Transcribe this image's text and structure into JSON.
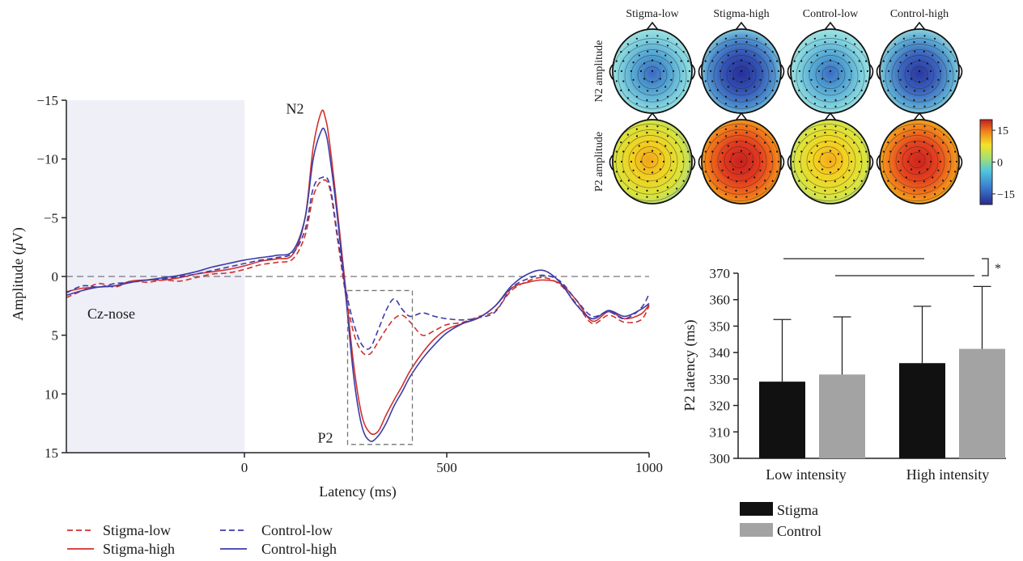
{
  "chart_data": [
    {
      "type": "line",
      "xlabel": "Latency (ms)",
      "ylabel": "Amplitude (μV)",
      "ylabel_prefix": "Amplitude (",
      "ylabel_mu": "μ",
      "ylabel_suffix": "V)",
      "xlim": [
        -440,
        1000
      ],
      "ylim": [
        15,
        -15
      ],
      "y_inverted": true,
      "x_ticks": [
        "0",
        "500",
        "1000"
      ],
      "x_tick_values": [
        0,
        500,
        1000
      ],
      "y_ticks": [
        "−15",
        "−10",
        "−5",
        "0",
        "5",
        "10",
        "15"
      ],
      "y_tick_values": [
        -15,
        -10,
        -5,
        0,
        5,
        10,
        15
      ],
      "baseline_region": [
        -440,
        0
      ],
      "baseline_color": "#efeff8",
      "channel_label": "Cz-nose",
      "peak_labels": [
        {
          "text": "N2",
          "x": 125,
          "y": -14
        },
        {
          "text": "P2",
          "x": 200,
          "y": 14
        }
      ],
      "p2_window": {
        "x": [
          255,
          415
        ],
        "y": [
          1.2,
          14.3
        ]
      },
      "series": [
        {
          "name": "Stigma-low",
          "color": "#d0312d",
          "dash": true,
          "x": [
            -440,
            -400,
            -360,
            -320,
            -280,
            -240,
            -200,
            -160,
            -120,
            -80,
            -40,
            0,
            40,
            80,
            120,
            150,
            170,
            190,
            210,
            230,
            250,
            270,
            290,
            310,
            330,
            350,
            370,
            390,
            410,
            440,
            470,
            500,
            540,
            580,
            620,
            660,
            700,
            740,
            780,
            820,
            860,
            900,
            940,
            980,
            1000
          ],
          "y": [
            1.8,
            1.2,
            0.6,
            0.9,
            0.4,
            0.5,
            0.3,
            0.4,
            0.1,
            -0.2,
            -0.3,
            -0.6,
            -1.0,
            -1.2,
            -1.5,
            -3.5,
            -6.8,
            -8.1,
            -7.6,
            -3.2,
            1.5,
            4.8,
            6.4,
            6.6,
            5.6,
            4.5,
            3.6,
            3.3,
            3.9,
            5.0,
            4.6,
            4.1,
            3.9,
            3.4,
            2.9,
            1.2,
            0.4,
            0.1,
            0.7,
            2.3,
            4.0,
            3.3,
            3.9,
            3.7,
            2.5
          ]
        },
        {
          "name": "Stigma-high",
          "color": "#d0312d",
          "dash": false,
          "x": [
            -440,
            -400,
            -360,
            -320,
            -280,
            -240,
            -200,
            -160,
            -120,
            -80,
            -40,
            0,
            40,
            80,
            120,
            150,
            170,
            190,
            200,
            210,
            230,
            250,
            270,
            290,
            310,
            330,
            350,
            370,
            390,
            410,
            440,
            470,
            500,
            540,
            580,
            620,
            660,
            700,
            740,
            780,
            820,
            860,
            900,
            940,
            980,
            1000
          ],
          "y": [
            1.3,
            1.0,
            0.9,
            0.8,
            0.4,
            0.3,
            0.3,
            0.1,
            -0.2,
            -0.4,
            -0.6,
            -0.9,
            -1.3,
            -1.5,
            -1.9,
            -5.0,
            -11.0,
            -14.0,
            -13.5,
            -11.5,
            -5.5,
            1.0,
            7.5,
            11.8,
            13.3,
            13.2,
            11.8,
            10.5,
            9.3,
            8.0,
            6.5,
            5.3,
            4.5,
            4.0,
            3.5,
            2.5,
            1.0,
            0.5,
            0.3,
            0.6,
            2.0,
            3.8,
            3.0,
            3.6,
            3.2,
            2.4
          ]
        },
        {
          "name": "Control-low",
          "color": "#3c3ca8",
          "dash": true,
          "x": [
            -440,
            -400,
            -360,
            -320,
            -280,
            -240,
            -200,
            -160,
            -120,
            -80,
            -40,
            0,
            40,
            80,
            120,
            150,
            170,
            190,
            210,
            230,
            250,
            270,
            290,
            310,
            330,
            350,
            370,
            390,
            410,
            440,
            470,
            500,
            540,
            580,
            620,
            660,
            700,
            740,
            780,
            820,
            860,
            900,
            940,
            980,
            1000
          ],
          "y": [
            1.4,
            0.8,
            0.9,
            0.6,
            0.5,
            0.3,
            0.2,
            0.0,
            -0.2,
            -0.5,
            -0.8,
            -1.1,
            -1.4,
            -1.6,
            -2.0,
            -4.0,
            -7.5,
            -8.4,
            -7.9,
            -3.5,
            1.0,
            4.0,
            5.8,
            6.1,
            4.6,
            2.9,
            1.9,
            2.8,
            3.4,
            3.1,
            3.4,
            3.6,
            3.7,
            3.5,
            3.0,
            1.0,
            0.2,
            -0.1,
            0.4,
            2.0,
            3.4,
            3.0,
            3.6,
            2.7,
            1.5
          ]
        },
        {
          "name": "Control-high",
          "color": "#3c3ca8",
          "dash": false,
          "x": [
            -440,
            -400,
            -360,
            -320,
            -280,
            -240,
            -200,
            -160,
            -120,
            -80,
            -40,
            0,
            40,
            80,
            120,
            150,
            170,
            190,
            200,
            210,
            230,
            250,
            270,
            290,
            310,
            330,
            350,
            370,
            390,
            410,
            440,
            470,
            500,
            540,
            580,
            620,
            660,
            700,
            740,
            780,
            820,
            860,
            900,
            940,
            980,
            1000
          ],
          "y": [
            1.6,
            1.2,
            0.9,
            0.8,
            0.5,
            0.3,
            0.1,
            -0.1,
            -0.4,
            -0.8,
            -1.1,
            -1.4,
            -1.6,
            -1.8,
            -2.2,
            -5.0,
            -10.0,
            -12.4,
            -12.3,
            -10.5,
            -5.0,
            1.5,
            8.5,
            12.7,
            14.0,
            13.6,
            12.5,
            11.0,
            9.8,
            8.5,
            7.0,
            5.8,
            4.8,
            4.0,
            3.5,
            2.5,
            0.8,
            -0.2,
            -0.5,
            0.5,
            2.4,
            3.6,
            2.9,
            3.4,
            2.8,
            2.3
          ]
        }
      ]
    },
    {
      "type": "heatmap",
      "description_kind": "topographic scalp maps",
      "columns": [
        "Stigma-low",
        "Stigma-high",
        "Control-low",
        "Control-high"
      ],
      "rows": [
        "N2 amplitude",
        "P2 amplitude"
      ],
      "colorbar_ticks": [
        "15",
        "0",
        "−15"
      ],
      "colorbar_tick_values": [
        15,
        0,
        -15
      ],
      "colorbar_range": [
        -20,
        20
      ],
      "center_values": [
        [
          -9,
          -17,
          -10,
          -16
        ],
        [
          9,
          17,
          9,
          17
        ]
      ]
    },
    {
      "type": "bar",
      "categories": [
        "Low intensity",
        "High intensity"
      ],
      "ylabel": "P2 latency (ms)",
      "ylim": [
        300,
        370
      ],
      "y_ticks": [
        "300",
        "310",
        "320",
        "330",
        "340",
        "350",
        "360",
        "370"
      ],
      "y_tick_values": [
        300,
        310,
        320,
        330,
        340,
        350,
        360,
        370
      ],
      "series": [
        {
          "name": "Stigma",
          "color": "#111111",
          "values": [
            329,
            336
          ],
          "error": [
            23.5,
            21.5
          ]
        },
        {
          "name": "Control",
          "color": "#a3a3a3",
          "values": [
            331.7,
            341.4
          ],
          "error": [
            21.8,
            23.6
          ]
        }
      ],
      "significance_mark": "*",
      "legend_position": "bottom-left"
    }
  ]
}
